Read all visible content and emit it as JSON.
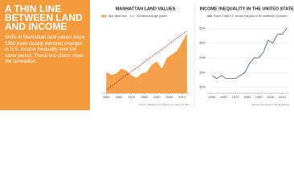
{
  "panel": {
    "title": "A THIN LINE BETWEEN LAND AND INCOME",
    "body": "Shifts in Manhattan land values since 1950 have closely mirrored changes in U.S. income inequality over the same period. These two charts show the correlation."
  },
  "chart_data": [
    {
      "type": "area",
      "title": "MANHATTAN LAND VALUES",
      "x": [
        1950,
        1954,
        1958,
        1962,
        1966,
        1970,
        1974,
        1978,
        1982,
        1986,
        1990,
        1994,
        1998,
        2002,
        2006,
        2010,
        2014
      ],
      "series": [
        {
          "name": "Land value index",
          "type": "area",
          "color": "#f5a04a",
          "values": [
            30,
            26,
            28,
            35,
            32,
            25,
            22,
            28,
            30,
            40,
            45,
            35,
            50,
            55,
            60,
            72,
            85
          ]
        },
        {
          "name": "Smoothed average growth",
          "type": "line",
          "dashed": true,
          "color": "#d7191c",
          "values": [
            5,
            10,
            15,
            21,
            26,
            31,
            36,
            41,
            47,
            52,
            57,
            62,
            67,
            73,
            78,
            83,
            88
          ]
        }
      ],
      "xlim": [
        1946,
        2016
      ],
      "xticks": [
        1950,
        1960,
        1970,
        1980,
        1990,
        2000,
        2010
      ],
      "ylim": [
        0,
        100
      ],
      "grid": false,
      "source": "Source: \"Building The Skyline\" by Jason M. Barr"
    },
    {
      "type": "line",
      "title": "INCOME INEQUALITY IN THE UNITED STATES",
      "x": [
        1950,
        1954,
        1958,
        1962,
        1966,
        1970,
        1974,
        1978,
        1982,
        1986,
        1990,
        1994,
        1998,
        2002,
        2006,
        2010,
        2014
      ],
      "series": [
        {
          "name": "Share of total U.S. income that goes to the wealthiest 10 percent",
          "color": "#2b3a8f",
          "values": [
            34,
            33,
            34,
            33,
            33,
            33,
            34,
            35,
            38,
            40,
            40,
            42,
            46,
            45,
            48,
            48,
            50
          ]
        }
      ],
      "xlim": [
        1946,
        2016
      ],
      "xticks": [
        1950,
        1960,
        1970,
        1980,
        1990,
        2000,
        2010
      ],
      "ylim": [
        28,
        52
      ],
      "yticks": [
        {
          "value": 30,
          "label": "30%"
        },
        {
          "value": 35,
          "label": "35%"
        },
        {
          "value": 40,
          "label": "40%"
        },
        {
          "value": 45,
          "label": "45%"
        },
        {
          "value": 50,
          "label": "50%"
        }
      ],
      "grid": true,
      "source": "Source: Economist Thomas Piketty"
    }
  ]
}
